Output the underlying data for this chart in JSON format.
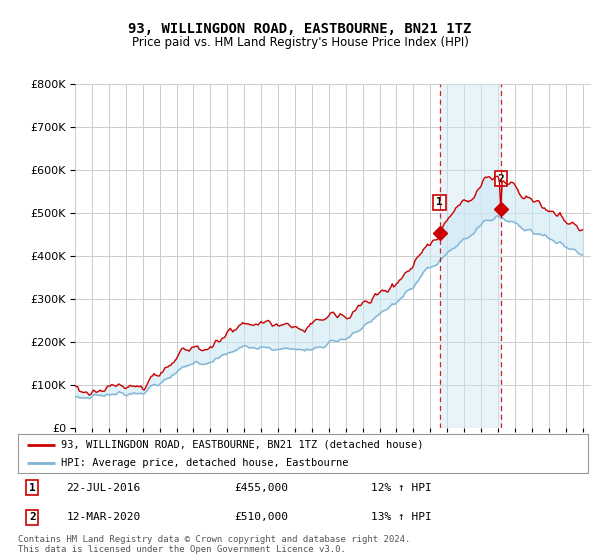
{
  "title": "93, WILLINGDON ROAD, EASTBOURNE, BN21 1TZ",
  "subtitle": "Price paid vs. HM Land Registry's House Price Index (HPI)",
  "legend_line1": "93, WILLINGDON ROAD, EASTBOURNE, BN21 1TZ (detached house)",
  "legend_line2": "HPI: Average price, detached house, Eastbourne",
  "transaction1_date": "22-JUL-2016",
  "transaction1_price": "£455,000",
  "transaction1_hpi": "12% ↑ HPI",
  "transaction2_date": "12-MAR-2020",
  "transaction2_price": "£510,000",
  "transaction2_hpi": "13% ↑ HPI",
  "footer": "Contains HM Land Registry data © Crown copyright and database right 2024.\nThis data is licensed under the Open Government Licence v3.0.",
  "hpi_line_color": "#7fb3d3",
  "price_line_color": "#cc0000",
  "vline_color": "#cc0000",
  "fill_color": "#cce0f0",
  "background_color": "#ffffff",
  "grid_color": "#cccccc",
  "ylim": [
    0,
    800000
  ],
  "yticks": [
    0,
    100000,
    200000,
    300000,
    400000,
    500000,
    600000,
    700000,
    800000
  ],
  "transaction1_x": 2016.55,
  "transaction1_y": 455000,
  "transaction2_x": 2020.19,
  "transaction2_y": 510000,
  "xlim_start": 1995,
  "xlim_end": 2025.5
}
